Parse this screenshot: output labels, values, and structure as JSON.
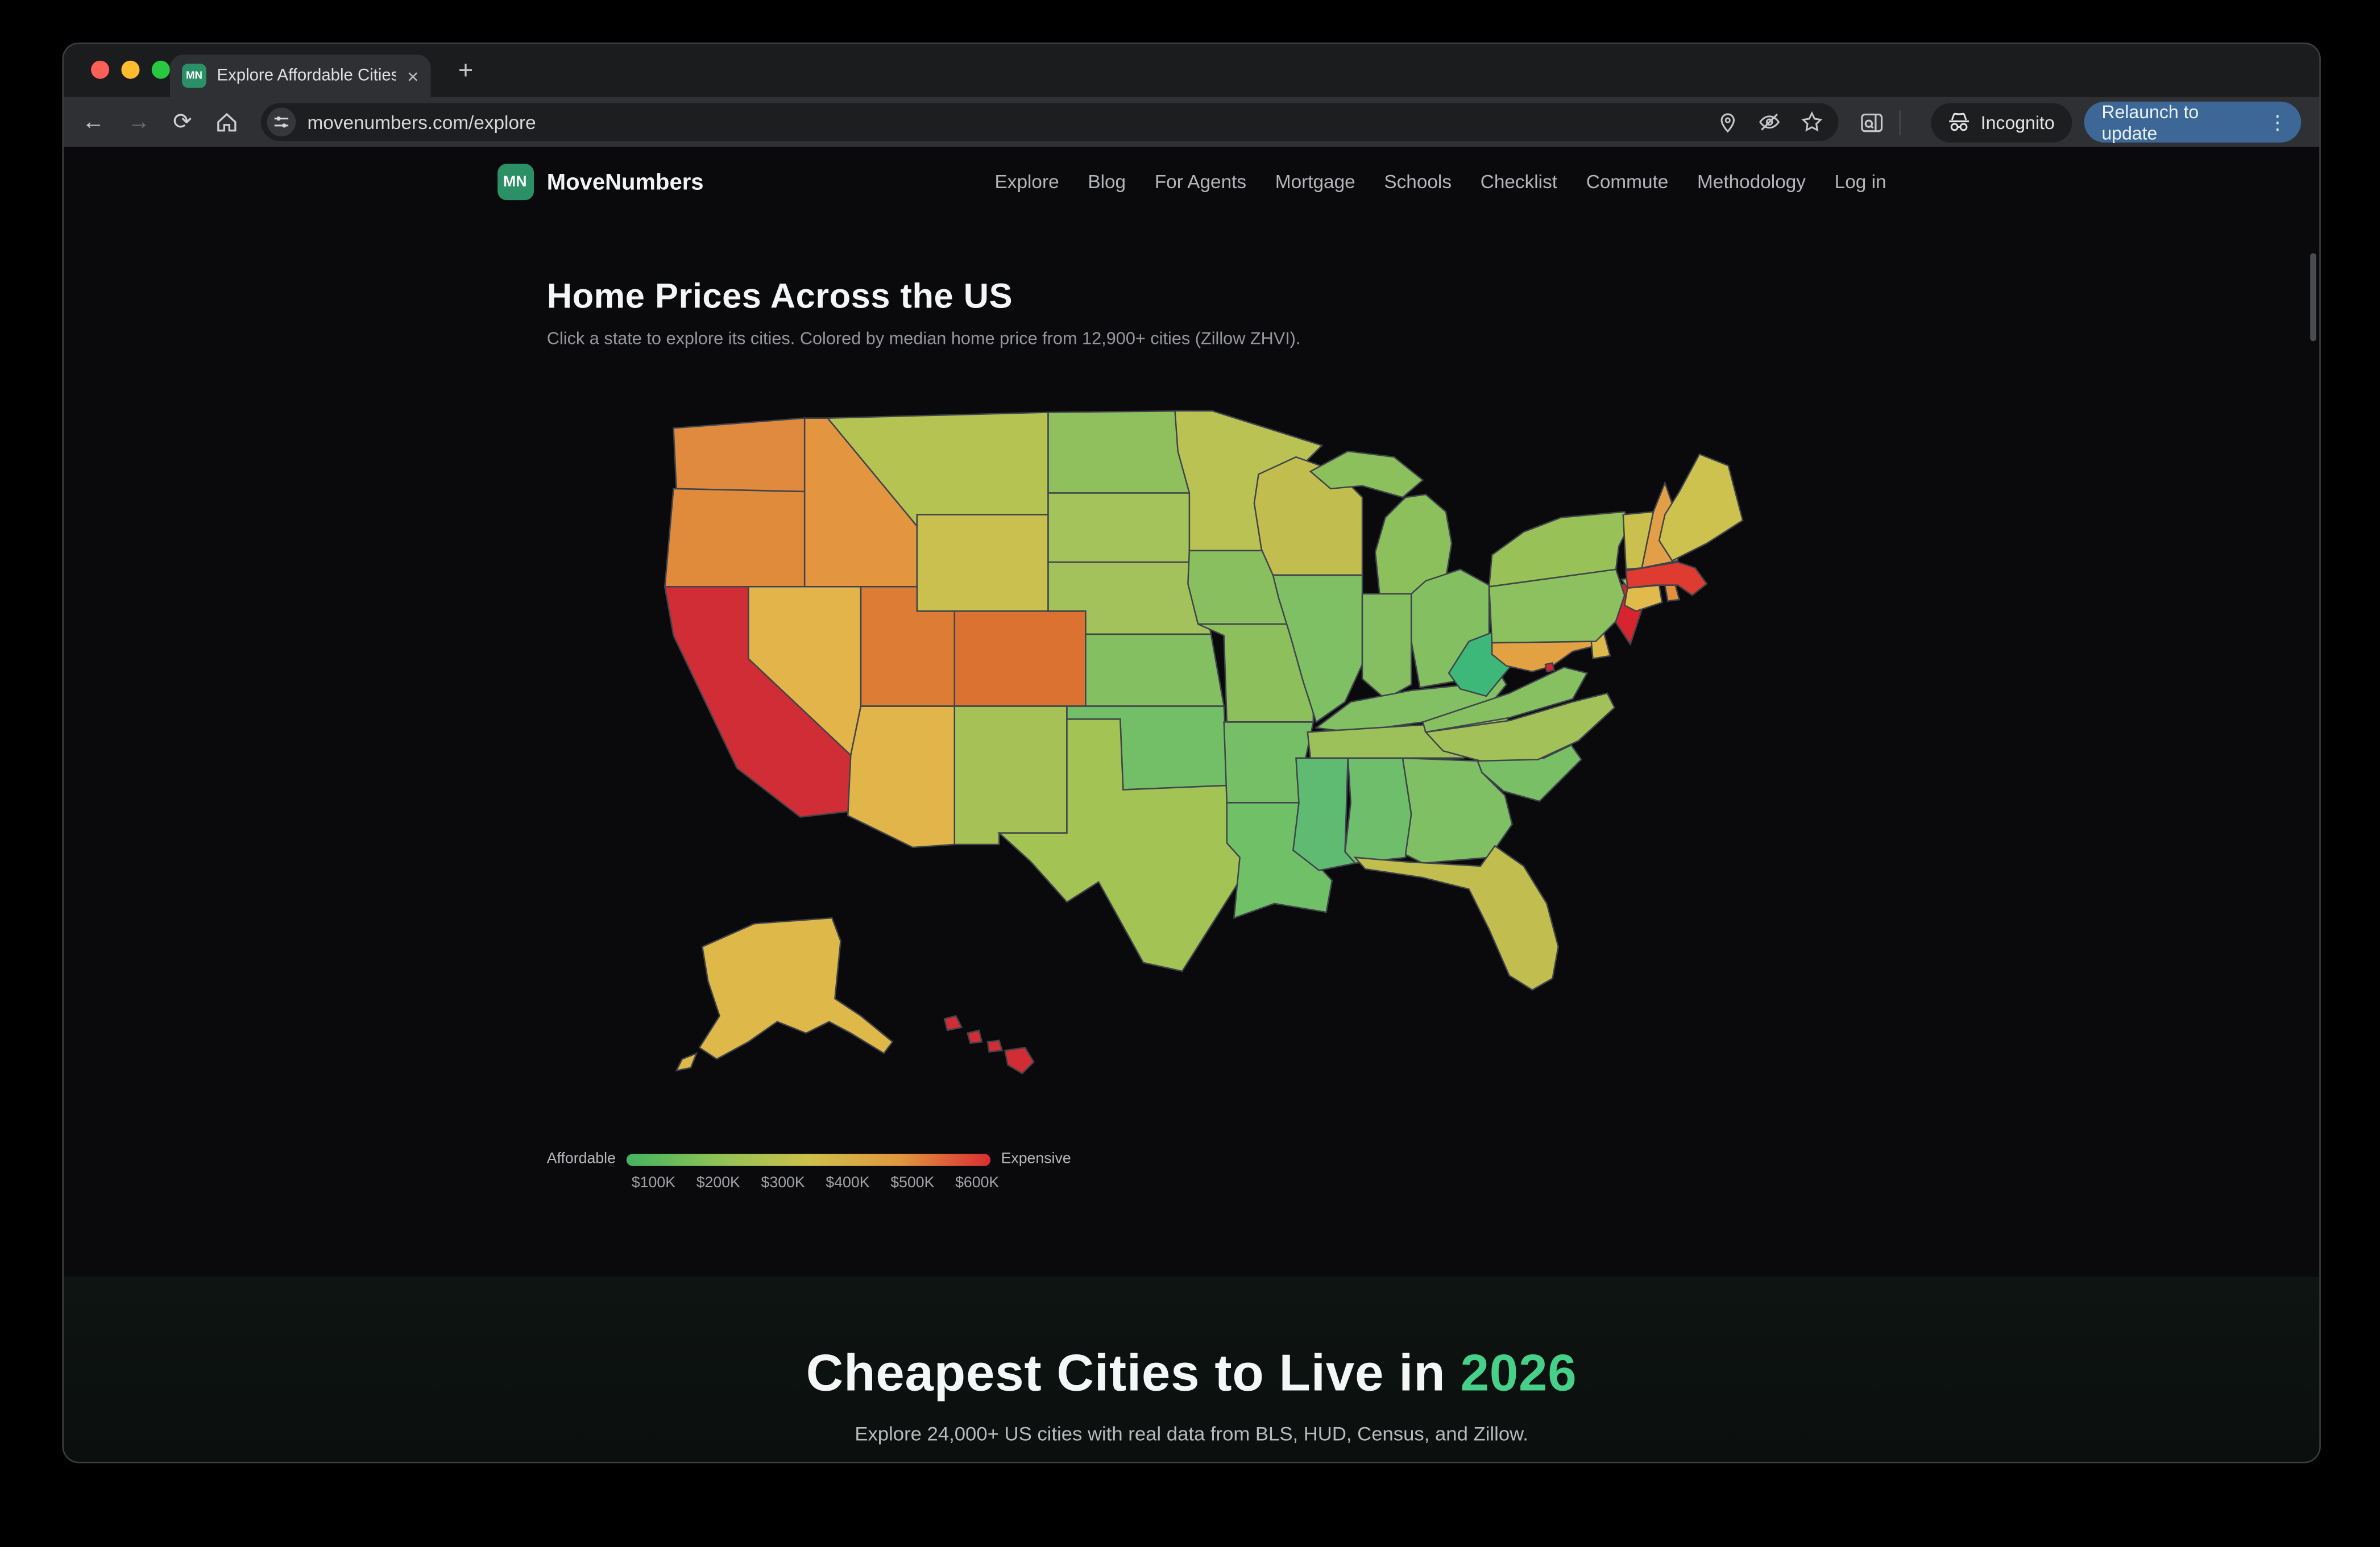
{
  "browser": {
    "tab_title": "Explore Affordable Cities to Li",
    "url": "movenumbers.com/explore",
    "incognito_label": "Incognito",
    "relaunch_label": "Relaunch to update",
    "relaunch_color": "#3c6796",
    "favicon_text": "MN"
  },
  "header": {
    "logo_text": "MN",
    "brand": "MoveNumbers",
    "brand_color": "#2c9067",
    "nav": [
      "Explore",
      "Blog",
      "For Agents",
      "Mortgage",
      "Schools",
      "Checklist",
      "Commute",
      "Methodology",
      "Log in"
    ]
  },
  "main": {
    "title": "Home Prices Across the US",
    "subtitle": "Click a state to explore its cities. Colored by median home price from 12,900+ cities (Zillow ZHVI)."
  },
  "legend": {
    "left_label": "Affordable",
    "right_label": "Expensive",
    "ticks": [
      "$100K",
      "$200K",
      "$300K",
      "$400K",
      "$500K",
      "$600K"
    ],
    "gradient": [
      "#43b45f",
      "#8fc255",
      "#cdc04c",
      "#e1973f",
      "#da2e31"
    ]
  },
  "hero": {
    "title_prefix": "Cheapest Cities to Live in ",
    "title_year": "2026",
    "year_color": "#46d089",
    "subtitle": "Explore 24,000+ US cities with real data from BLS, HUD, Census, and Zillow."
  },
  "chart_data": {
    "type": "choropleth",
    "title": "Home Prices Across the US",
    "scale_labels": {
      "min": "Affordable",
      "max": "Expensive"
    },
    "scale_ticks": [
      "$100K",
      "$200K",
      "$300K",
      "$400K",
      "$500K",
      "$600K"
    ],
    "states": [
      {
        "code": "WA",
        "fill": "#df8a3e"
      },
      {
        "code": "OR",
        "fill": "#e08a3c"
      },
      {
        "code": "CA",
        "fill": "#d02d36"
      },
      {
        "code": "NV",
        "fill": "#e2b44a"
      },
      {
        "code": "ID",
        "fill": "#e3953f"
      },
      {
        "code": "MT",
        "fill": "#b5c353"
      },
      {
        "code": "WY",
        "fill": "#c9c04f"
      },
      {
        "code": "UT",
        "fill": "#dd7c35"
      },
      {
        "code": "CO",
        "fill": "#dc7231"
      },
      {
        "code": "AZ",
        "fill": "#e2b54b"
      },
      {
        "code": "NM",
        "fill": "#a6c257"
      },
      {
        "code": "ND",
        "fill": "#90c05e"
      },
      {
        "code": "SD",
        "fill": "#a4c35a"
      },
      {
        "code": "NE",
        "fill": "#a3c25c"
      },
      {
        "code": "KS",
        "fill": "#84c062"
      },
      {
        "code": "OK",
        "fill": "#72bf68"
      },
      {
        "code": "TX",
        "fill": "#a3c355"
      },
      {
        "code": "MN",
        "fill": "#bac253"
      },
      {
        "code": "IA",
        "fill": "#89bf5e"
      },
      {
        "code": "MO",
        "fill": "#8dbf5c"
      },
      {
        "code": "AR",
        "fill": "#77bf66"
      },
      {
        "code": "LA",
        "fill": "#70c068"
      },
      {
        "code": "WI",
        "fill": "#c1bd4f"
      },
      {
        "code": "IL",
        "fill": "#7fc065"
      },
      {
        "code": "MI",
        "fill": "#8cc05c"
      },
      {
        "code": "IN",
        "fill": "#85bf61"
      },
      {
        "code": "OH",
        "fill": "#84bf62"
      },
      {
        "code": "KY",
        "fill": "#83bf63"
      },
      {
        "code": "TN",
        "fill": "#9dc15a"
      },
      {
        "code": "MS",
        "fill": "#5fbb72"
      },
      {
        "code": "AL",
        "fill": "#6fbe6b"
      },
      {
        "code": "GA",
        "fill": "#7fc064"
      },
      {
        "code": "FL",
        "fill": "#c2bd4f"
      },
      {
        "code": "SC",
        "fill": "#79bf66"
      },
      {
        "code": "NC",
        "fill": "#a3c159"
      },
      {
        "code": "VA",
        "fill": "#87c061"
      },
      {
        "code": "WV",
        "fill": "#3eb878"
      },
      {
        "code": "MD",
        "fill": "#e2a143"
      },
      {
        "code": "DE",
        "fill": "#ddb94a"
      },
      {
        "code": "DC",
        "fill": "#d7242e"
      },
      {
        "code": "NJ",
        "fill": "#d7242e"
      },
      {
        "code": "PA",
        "fill": "#8dc05f"
      },
      {
        "code": "NY",
        "fill": "#98c258"
      },
      {
        "code": "CT",
        "fill": "#e0bb4c"
      },
      {
        "code": "RI",
        "fill": "#e28f3e"
      },
      {
        "code": "MA",
        "fill": "#df3b31"
      },
      {
        "code": "VT",
        "fill": "#c9c04e"
      },
      {
        "code": "NH",
        "fill": "#e39f48"
      },
      {
        "code": "ME",
        "fill": "#cdc24d"
      },
      {
        "code": "AK",
        "fill": "#dfb84a"
      },
      {
        "code": "HI",
        "fill": "#d22c35"
      }
    ]
  }
}
